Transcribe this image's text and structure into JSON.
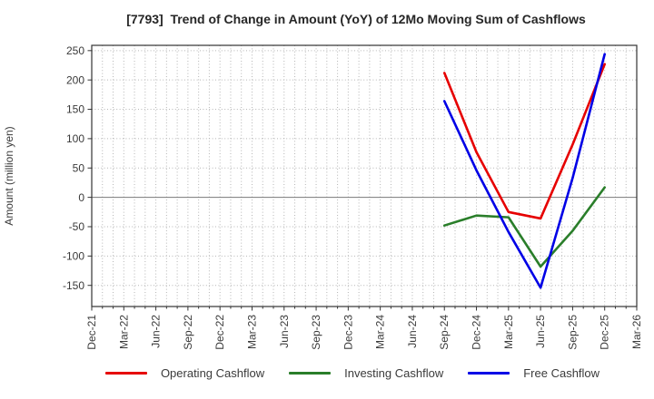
{
  "title": "[7793]  Trend of Change in Amount (YoY) of 12Mo Moving Sum of Cashflows",
  "chart_data": {
    "type": "line",
    "title": "[7793]  Trend of Change in Amount (YoY) of 12Mo Moving Sum of Cashflows",
    "xlabel": "",
    "ylabel": "Amount (million yen)",
    "x_tick_labels": [
      "Dec-21",
      "Mar-22",
      "Jun-22",
      "Sep-22",
      "Dec-22",
      "Mar-23",
      "Jun-23",
      "Sep-23",
      "Dec-23",
      "Mar-24",
      "Jun-24",
      "Sep-24",
      "Dec-24",
      "Mar-25",
      "Jun-25",
      "Sep-25",
      "Dec-25",
      "Mar-26"
    ],
    "y_ticks": [
      -150,
      -100,
      -50,
      0,
      50,
      100,
      150,
      200,
      250
    ],
    "ylim": [
      -186,
      259
    ],
    "grid": "dotted, monthly vertical and 50-unit horizontal, solid zero line",
    "legend_position": "bottom",
    "colors": {
      "grid": "#b5b5b5",
      "zero_line": "#7a7a7a",
      "frame": "#333333",
      "title_text": "#262626",
      "tick_text": "#3a3a3a"
    },
    "series": [
      {
        "name": "Operating Cashflow",
        "color": "#e60000",
        "x": [
          "Sep-24",
          "Dec-24",
          "Mar-25",
          "Jun-25",
          "Sep-25",
          "Dec-25"
        ],
        "values": [
          212,
          77,
          -25,
          -36,
          90,
          227
        ]
      },
      {
        "name": "Investing Cashflow",
        "color": "#2a7e2a",
        "x": [
          "Sep-24",
          "Dec-24",
          "Mar-25",
          "Jun-25",
          "Sep-25",
          "Dec-25"
        ],
        "values": [
          -48,
          -31,
          -34,
          -118,
          -57,
          17
        ]
      },
      {
        "name": "Free Cashflow",
        "color": "#0000e6",
        "x": [
          "Sep-24",
          "Dec-24",
          "Mar-25",
          "Jun-25",
          "Sep-25",
          "Dec-25"
        ],
        "values": [
          164,
          46,
          -59,
          -154,
          33,
          244
        ]
      }
    ]
  }
}
